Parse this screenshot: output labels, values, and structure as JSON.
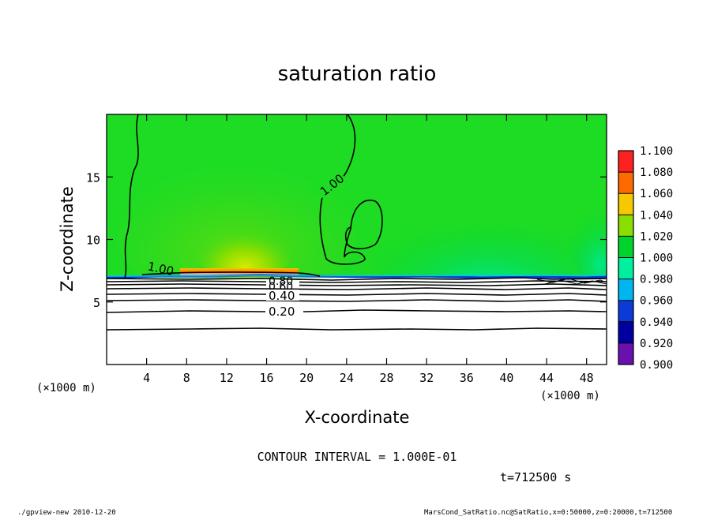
{
  "chart_data": {
    "type": "heatmap",
    "title": "saturation ratio",
    "xlabel": "X-coordinate",
    "ylabel": "Z-coordinate",
    "x_unit_left": "(×1000 m)",
    "x_unit_right": "(×1000 m)",
    "xlim": [
      0,
      50
    ],
    "ylim": [
      0,
      20
    ],
    "x_ticks": [
      4,
      8,
      12,
      16,
      20,
      24,
      28,
      32,
      36,
      40,
      44,
      48
    ],
    "y_ticks": [
      5,
      10,
      15
    ],
    "colorbar": {
      "levels": [
        0.9,
        0.92,
        0.94,
        0.96,
        0.98,
        1.0,
        1.02,
        1.04,
        1.06,
        1.08,
        1.1
      ],
      "labels": [
        "0.900",
        "0.920",
        "0.940",
        "0.960",
        "0.980",
        "1.000",
        "1.020",
        "1.040",
        "1.060",
        "1.080",
        "1.100"
      ],
      "colors": [
        "#6a10b0",
        "#0000a0",
        "#0a3ad8",
        "#00b6f0",
        "#00f0a0",
        "#00d42c",
        "#8ade00",
        "#f5c800",
        "#ff6a00",
        "#ff2020",
        "#ff8888"
      ]
    },
    "contour_interval": "CONTOUR INTERVAL = 1.000E-01",
    "contour_labels": [
      "1.00",
      "1.00",
      "0.80",
      "0.60",
      "0.40",
      "0.20"
    ],
    "time_label": "t=712500 s"
  },
  "footer": {
    "left": "./gpview-new  2010-12-20",
    "right": "MarsCond_SatRatio.nc@SatRatio,x=0:50000,z=0:20000,t=712500"
  }
}
